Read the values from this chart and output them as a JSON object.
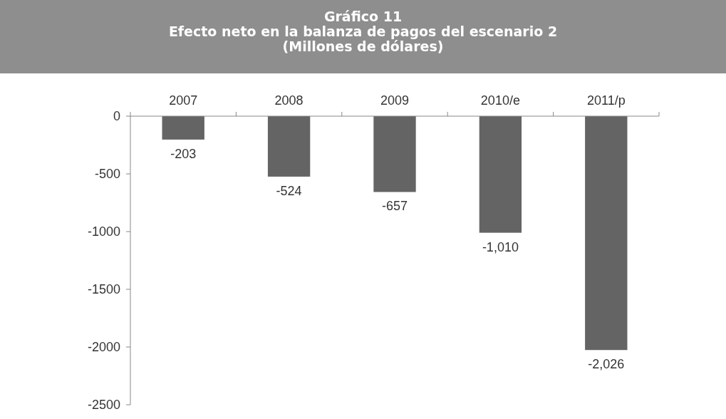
{
  "chart_data": {
    "type": "bar",
    "title": "Gráfico 11\nEfecto neto en la balanza de pagos del escenario 2",
    "subtitle": "(Millones de dólares)",
    "categories": [
      "2007",
      "2008",
      "2009",
      "2010/e",
      "2011/p"
    ],
    "values": [
      -203,
      -524,
      -657,
      -1010,
      -2026
    ],
    "value_labels": [
      "-203",
      "-524",
      "-657",
      "-1,010",
      "-2,026"
    ],
    "color": "#646464",
    "ylim": [
      -2500,
      0
    ],
    "yticks": [
      0,
      {
        "value": -500,
        "label": "-500"
      },
      {
        "value": -1000,
        "label": "-1000"
      },
      {
        "value": -1500,
        "label": "-1500"
      },
      {
        "value": -2000,
        "label": "-2000"
      },
      {
        "value": -2500,
        "label": "-2500"
      }
    ],
    "grid": false
  }
}
